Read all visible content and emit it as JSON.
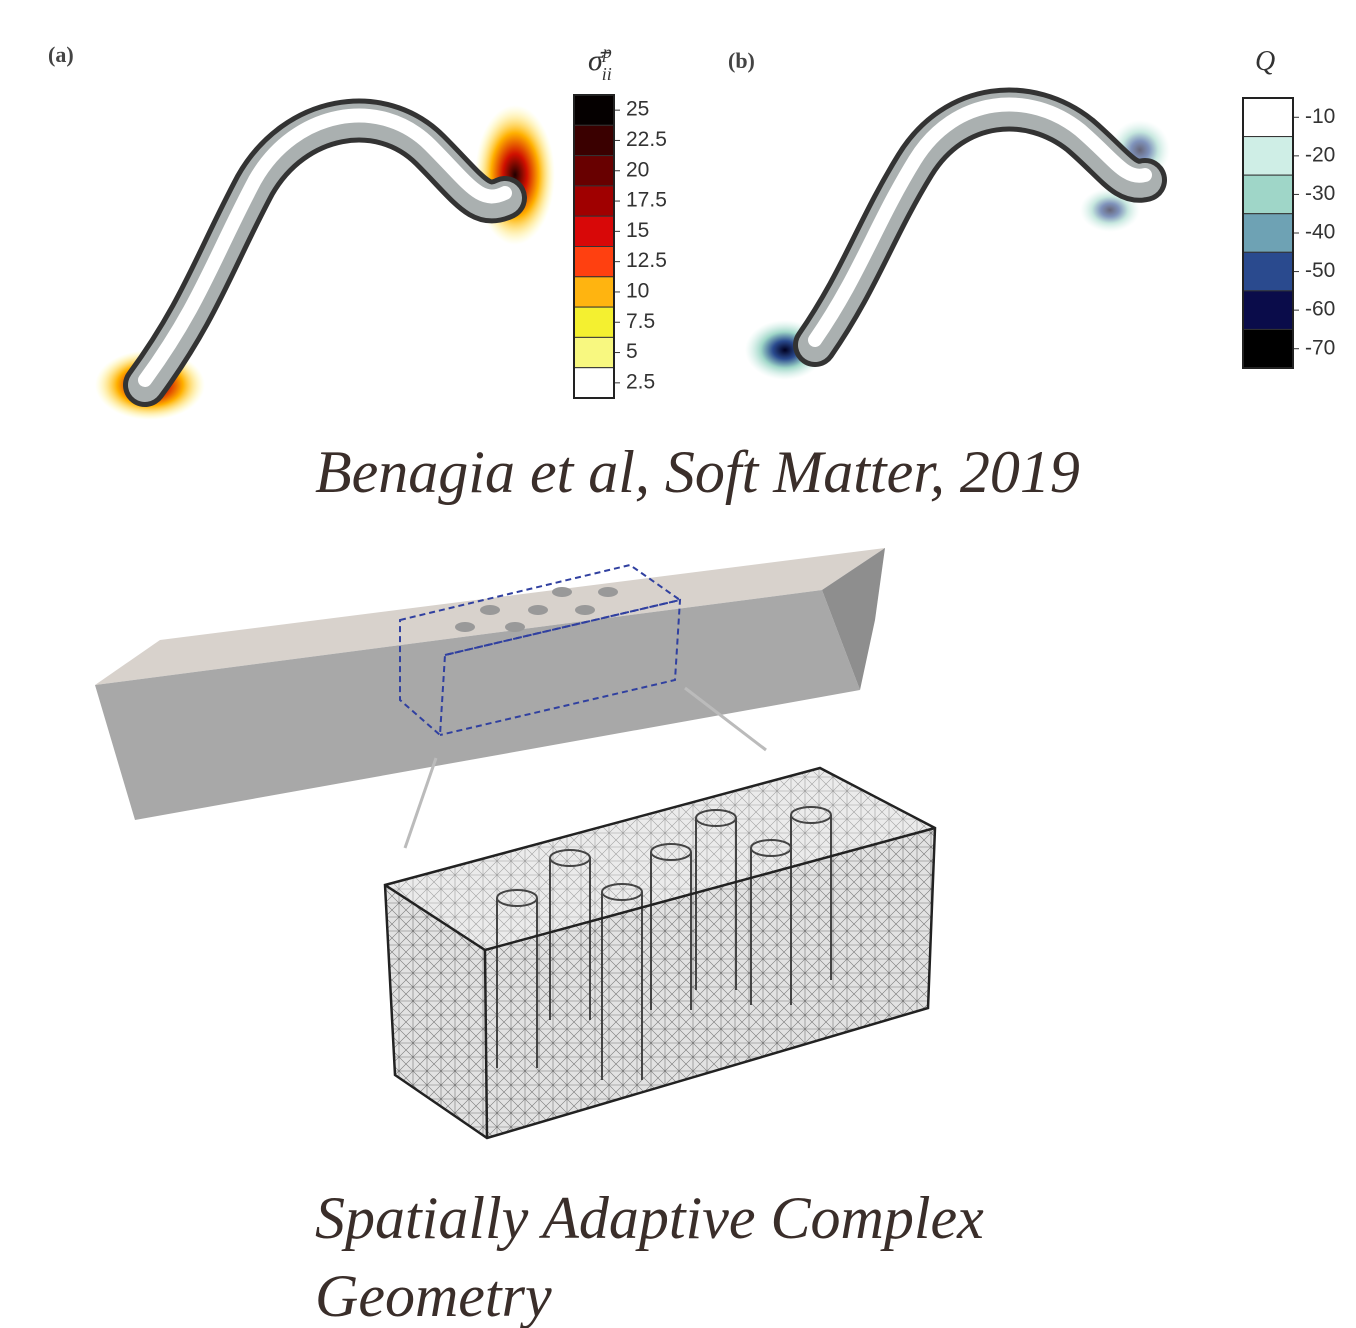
{
  "panel_a": {
    "label": "(a)",
    "colorbar": {
      "symbol": "σ̄",
      "sup": "p",
      "sub": "ii",
      "ticks": [
        25,
        22.5,
        20,
        17.5,
        15,
        12.5,
        10,
        7.5,
        5,
        2.5
      ],
      "colors": [
        "#050000",
        "#3a0000",
        "#680000",
        "#a00000",
        "#d80808",
        "#ff4010",
        "#ffb410",
        "#f4f030",
        "#f8f880",
        "#ffffff"
      ]
    }
  },
  "panel_b": {
    "label": "(b)",
    "colorbar": {
      "symbol": "Q",
      "ticks": [
        -10,
        -20,
        -30,
        -40,
        -50,
        -60,
        -70
      ],
      "colors": [
        "#ffffff",
        "#cfeee6",
        "#9fd6c8",
        "#6ea2b4",
        "#2a4a8e",
        "#0a0c4a",
        "#000000"
      ]
    }
  },
  "caption_1": "Benagia et al, Soft Matter, 2019",
  "caption_2": {
    "line_1": "Spatially Adaptive Complex",
    "line_2": "Geometry"
  }
}
